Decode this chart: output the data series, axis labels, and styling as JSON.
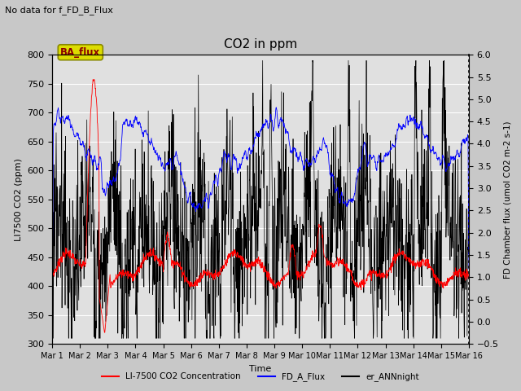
{
  "title": "CO2 in ppm",
  "top_left_text": "No data for f_FD_B_Flux",
  "xlabel": "Time",
  "ylabel_left": "LI7500 CO2 (ppm)",
  "ylabel_right": "FD Chamber flux (umol CO2 m-2 s-1)",
  "ylim_left": [
    300,
    800
  ],
  "ylim_right": [
    -0.5,
    6.0
  ],
  "xlim": [
    0,
    15
  ],
  "xtick_labels": [
    "Mar 1",
    "Mar 2",
    "Mar 3",
    "Mar 4",
    "Mar 5",
    "Mar 6",
    "Mar 7",
    "Mar 8",
    "Mar 9",
    "Mar 10",
    "Mar 11",
    "Mar 12",
    "Mar 13",
    "Mar 14",
    "Mar 15",
    "Mar 16"
  ],
  "xtick_positions": [
    0,
    1,
    2,
    3,
    4,
    5,
    6,
    7,
    8,
    9,
    10,
    11,
    12,
    13,
    14,
    15
  ],
  "legend_box_label": "BA_flux",
  "legend_box_facecolor": "#DDDD00",
  "legend_box_edgecolor": "#888800",
  "legend_box_text_color": "#8B0000",
  "legend_entries": [
    "LI-7500 CO2 Concentration",
    "FD_A_Flux",
    "er_ANNnight"
  ],
  "line_colors": [
    "red",
    "blue",
    "black"
  ],
  "fig_facecolor": "#c8c8c8",
  "plot_bg_color": "#e0e0e0",
  "ytick_left": [
    300,
    350,
    400,
    450,
    500,
    550,
    600,
    650,
    700,
    750,
    800
  ],
  "ytick_right": [
    -0.5,
    0.0,
    0.5,
    1.0,
    1.5,
    2.0,
    2.5,
    3.0,
    3.5,
    4.0,
    4.5,
    5.0,
    5.5,
    6.0
  ]
}
